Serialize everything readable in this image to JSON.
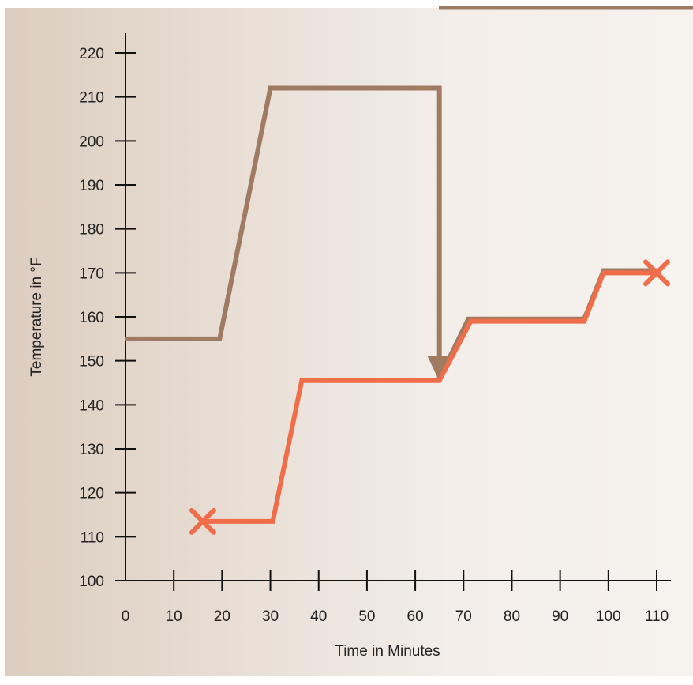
{
  "chart_data": {
    "type": "line",
    "xlabel": "Time in Minutes",
    "ylabel": "Temperature in °F",
    "xlim": [
      0,
      110
    ],
    "ylim": [
      100,
      220
    ],
    "x_ticks": [
      0,
      10,
      20,
      30,
      40,
      50,
      60,
      70,
      80,
      90,
      100,
      110
    ],
    "y_ticks": [
      100,
      110,
      120,
      130,
      140,
      150,
      160,
      170,
      180,
      190,
      200,
      210,
      220
    ],
    "grid": false,
    "series": [
      {
        "color": "#a07b62",
        "points": [
          [
            0,
            155
          ],
          [
            19.5,
            155
          ],
          [
            30,
            212
          ],
          [
            65,
            212
          ],
          [
            65,
            146
          ],
          [
            71,
            159.5
          ],
          [
            95,
            159.5
          ],
          [
            99,
            170.5
          ],
          [
            110,
            170.5
          ]
        ],
        "arrow_end_x": 65
      },
      {
        "color": "#f06d4a",
        "points": [
          [
            16,
            113.5
          ],
          [
            30.5,
            113.5
          ],
          [
            36.5,
            145.5
          ],
          [
            65,
            145.5
          ],
          [
            71.5,
            159
          ],
          [
            95,
            159
          ],
          [
            99,
            170
          ],
          [
            110,
            170
          ]
        ],
        "markers": [
          {
            "x": 16,
            "y": 113.5,
            "shape": "x"
          },
          {
            "x": 110,
            "y": 170,
            "shape": "x"
          }
        ]
      }
    ]
  },
  "colors": {
    "background_left": "#dccdbf",
    "background_right": "#f6f2ee",
    "axis": "#111111",
    "top_rule": "#a07b62"
  }
}
